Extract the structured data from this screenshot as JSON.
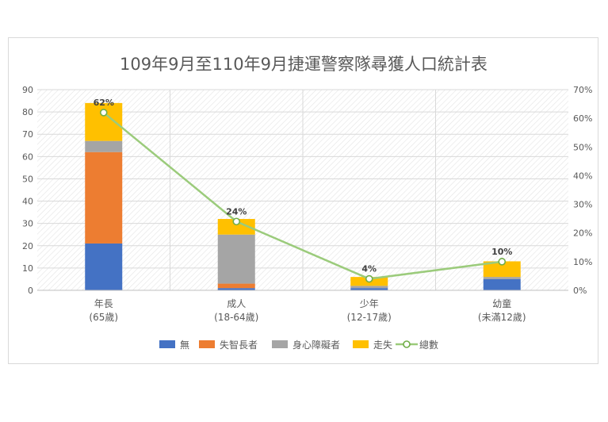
{
  "chart_data": {
    "type": "bar",
    "stacked": true,
    "title": "109年9月至110年9月捷運警察隊尋獲人口統計表",
    "categories": [
      {
        "line1": "年長",
        "line2": "(65歲)"
      },
      {
        "line1": "成人",
        "line2": "(18-64歲)"
      },
      {
        "line1": "少年",
        "line2": "(12-17歲)"
      },
      {
        "line1": "幼童",
        "line2": "(未滿12歲)"
      }
    ],
    "series": [
      {
        "name": "無",
        "color": "#4472C4",
        "values": [
          21,
          1,
          1,
          5
        ]
      },
      {
        "name": "失智長者",
        "color": "#ED7D31",
        "values": [
          41,
          2,
          0,
          0
        ]
      },
      {
        "name": "身心障礙者",
        "color": "#A5A5A5",
        "values": [
          5,
          22,
          1,
          1
        ]
      },
      {
        "name": "走失",
        "color": "#FFC000",
        "values": [
          17,
          7,
          4,
          7
        ]
      }
    ],
    "line_series": {
      "name": "總數",
      "color": "#9BCB7B",
      "axis": "secondary",
      "values": [
        0.62,
        0.24,
        0.04,
        0.1
      ],
      "labels": [
        "62%",
        "24%",
        "4%",
        "10%"
      ]
    },
    "y_left": {
      "min": 0,
      "max": 90,
      "step": 10,
      "ticks": [
        "0",
        "10",
        "20",
        "30",
        "40",
        "50",
        "60",
        "70",
        "80",
        "90"
      ]
    },
    "y_right": {
      "min": 0,
      "max": 0.7,
      "step": 0.1,
      "ticks": [
        "0%",
        "10%",
        "20%",
        "30%",
        "40%",
        "50%",
        "60%",
        "70%"
      ]
    },
    "legend_position": "bottom",
    "grid": true
  }
}
